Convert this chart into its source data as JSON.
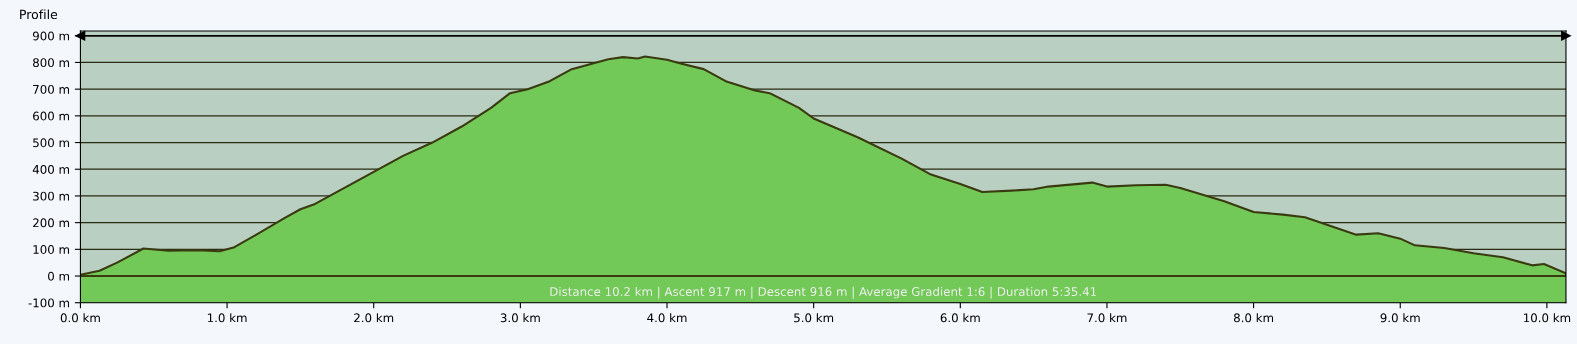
{
  "chart_data": {
    "type": "area",
    "title": "Profile",
    "x": [
      0.0,
      0.13,
      0.25,
      0.43,
      0.6,
      0.8,
      0.95,
      1.05,
      1.2,
      1.4,
      1.5,
      1.6,
      1.8,
      2.0,
      2.2,
      2.4,
      2.6,
      2.8,
      2.93,
      3.05,
      3.2,
      3.35,
      3.45,
      3.6,
      3.7,
      3.8,
      3.85,
      4.0,
      4.1,
      4.25,
      4.4,
      4.6,
      4.7,
      4.9,
      5.0,
      5.3,
      5.6,
      5.8,
      6.0,
      6.15,
      6.35,
      6.5,
      6.6,
      6.9,
      7.0,
      7.2,
      7.4,
      7.5,
      7.8,
      8.0,
      8.2,
      8.35,
      8.7,
      8.85,
      9.0,
      9.1,
      9.3,
      9.5,
      9.7,
      9.9,
      9.98,
      10.13
    ],
    "series": [
      {
        "color": "#72c957",
        "values": [
          5,
          20,
          50,
          103,
          95,
          97,
          93,
          108,
          155,
          220,
          250,
          270,
          330,
          390,
          450,
          500,
          560,
          630,
          685,
          700,
          730,
          775,
          790,
          812,
          820,
          815,
          822,
          810,
          795,
          775,
          730,
          695,
          685,
          630,
          590,
          520,
          440,
          380,
          345,
          315,
          320,
          325,
          335,
          350,
          335,
          340,
          342,
          330,
          280,
          240,
          230,
          220,
          155,
          160,
          140,
          115,
          105,
          85,
          70,
          40,
          45,
          10
        ]
      }
    ],
    "xlim": [
      0,
      10.13
    ],
    "ylim": [
      -100,
      918
    ],
    "xticks": [
      {
        "value": 0,
        "label": "0.0 km"
      },
      {
        "value": 1,
        "label": "1.0 km"
      },
      {
        "value": 2,
        "label": "2.0 km"
      },
      {
        "value": 3,
        "label": "3.0 km"
      },
      {
        "value": 4,
        "label": "4.0 km"
      },
      {
        "value": 5,
        "label": "5.0 km"
      },
      {
        "value": 6,
        "label": "6.0 km"
      },
      {
        "value": 7,
        "label": "7.0 km"
      },
      {
        "value": 8,
        "label": "8.0 km"
      },
      {
        "value": 9,
        "label": "9.0 km"
      },
      {
        "value": 10,
        "label": "10.0 km"
      }
    ],
    "yticks": [
      {
        "value": -100,
        "label": "-100 m"
      },
      {
        "value": 0,
        "label": "0 m"
      },
      {
        "value": 100,
        "label": "100 m"
      },
      {
        "value": 200,
        "label": "200 m"
      },
      {
        "value": 300,
        "label": "300 m"
      },
      {
        "value": 400,
        "label": "400 m"
      },
      {
        "value": 500,
        "label": "500 m"
      },
      {
        "value": 600,
        "label": "600 m"
      },
      {
        "value": 700,
        "label": "700 m"
      },
      {
        "value": 800,
        "label": "800 m"
      },
      {
        "value": 900,
        "label": "900 m"
      }
    ],
    "grid": "y",
    "bands": [
      {
        "axis": "y",
        "from": -100,
        "to": 0,
        "color": "#72c957"
      }
    ],
    "ref_lines": [
      {
        "axis": "y",
        "value": 900,
        "color": "#000000"
      }
    ],
    "annotations": [
      "Distance 10.2 km | Ascent 917 m | Descent 916 m | Average Gradient 1:6 | Duration 5:35.41"
    ]
  }
}
